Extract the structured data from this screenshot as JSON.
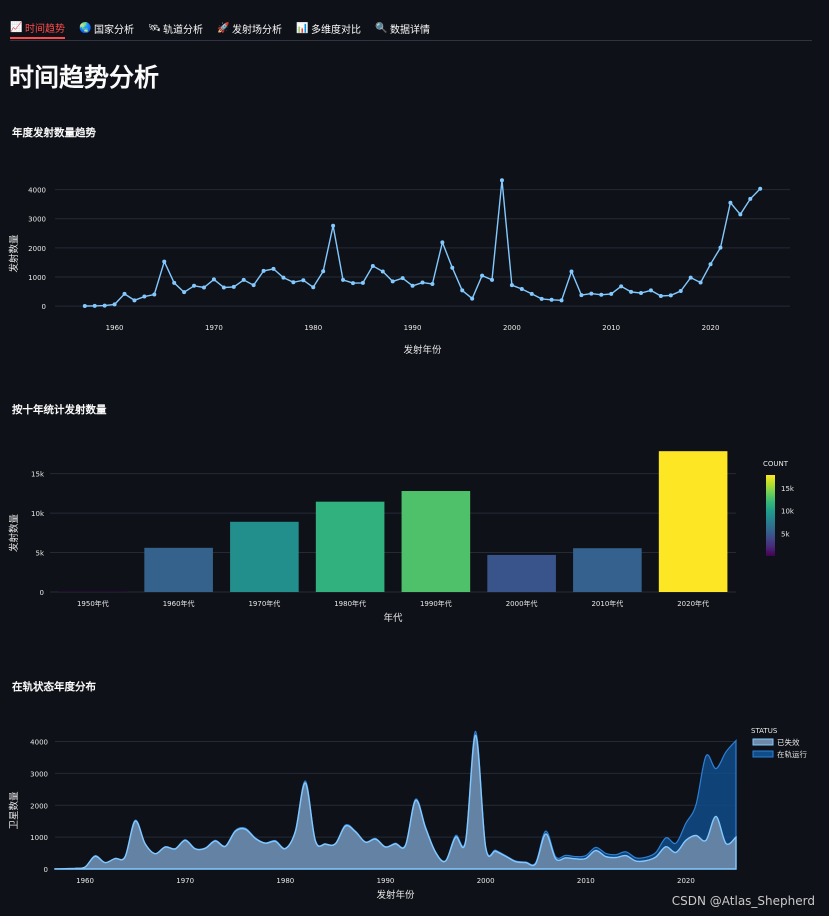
{
  "tabs": [
    {
      "label": "时间趋势",
      "icon": "📈",
      "active": true
    },
    {
      "label": "国家分析",
      "icon": "🌏",
      "active": false
    },
    {
      "label": "轨道分析",
      "icon": "🛰",
      "active": false
    },
    {
      "label": "发射场分析",
      "icon": "🚀",
      "active": false
    },
    {
      "label": "多维度对比",
      "icon": "📊",
      "active": false
    },
    {
      "label": "数据详情",
      "icon": "🔍",
      "active": false
    }
  ],
  "page_title": "时间趋势分析",
  "watermark": "CSDN @Atlas_Shepherd",
  "colors": {
    "accent": "#ff4b4b",
    "line": "#83c9ff",
    "area_dark": "#0f4c8a",
    "area_light": "#83c9ff"
  },
  "chart_data": [
    {
      "type": "line",
      "title": "年度发射数量趋势",
      "xlabel": "发射年份",
      "ylabel": "发射数量",
      "xlim": [
        1954,
        2028
      ],
      "ylim": [
        -200,
        4500
      ],
      "xticks": [
        1960,
        1970,
        1980,
        1990,
        2000,
        2010,
        2020
      ],
      "yticks": [
        0,
        1000,
        2000,
        3000,
        4000
      ],
      "x": [
        1957,
        1958,
        1959,
        1960,
        1961,
        1962,
        1963,
        1964,
        1965,
        1966,
        1967,
        1968,
        1969,
        1970,
        1971,
        1972,
        1973,
        1974,
        1975,
        1976,
        1977,
        1978,
        1979,
        1980,
        1981,
        1982,
        1983,
        1984,
        1985,
        1986,
        1987,
        1988,
        1989,
        1990,
        1991,
        1992,
        1993,
        1994,
        1995,
        1996,
        1997,
        1998,
        1999,
        2000,
        2001,
        2002,
        2003,
        2004,
        2005,
        2006,
        2007,
        2008,
        2009,
        2010,
        2011,
        2012,
        2013,
        2014,
        2015,
        2016,
        2017,
        2018,
        2019,
        2020,
        2021,
        2022,
        2023,
        2024,
        2025
      ],
      "y": [
        5,
        10,
        20,
        60,
        420,
        200,
        330,
        400,
        1530,
        800,
        480,
        700,
        640,
        920,
        640,
        660,
        900,
        720,
        1210,
        1280,
        980,
        820,
        890,
        650,
        1200,
        2760,
        900,
        790,
        800,
        1380,
        1190,
        850,
        960,
        700,
        810,
        760,
        2190,
        1320,
        540,
        260,
        1050,
        900,
        4320,
        720,
        590,
        420,
        250,
        220,
        200,
        1190,
        380,
        430,
        390,
        420,
        680,
        490,
        450,
        540,
        350,
        370,
        520,
        980,
        810,
        1440,
        2010,
        3550,
        3150,
        3680,
        4030
      ]
    },
    {
      "type": "bar",
      "title": "按十年统计发射数量",
      "xlabel": "年代",
      "ylabel": "发射数量",
      "ylim": [
        0,
        18000
      ],
      "yticks": [
        0,
        5000,
        10000,
        15000
      ],
      "ytick_labels": [
        "0",
        "5k",
        "10k",
        "15k"
      ],
      "categories": [
        "1950年代",
        "1960年代",
        "1970年代",
        "1980年代",
        "1990年代",
        "2000年代",
        "2010年代",
        "2020年代"
      ],
      "values": [
        60,
        5600,
        8900,
        11450,
        12800,
        4700,
        5550,
        17850
      ],
      "colorscale": "Viridis",
      "colorbar": {
        "title": "COUNT",
        "ticks": [
          5000,
          10000,
          15000
        ],
        "tick_labels": [
          "5k",
          "10k",
          "15k"
        ],
        "range": [
          60,
          17850
        ]
      }
    },
    {
      "type": "area",
      "title": "在轨状态年度分布",
      "xlabel": "发射年份",
      "ylabel": "卫星数量",
      "xlim": [
        1957,
        2025
      ],
      "ylim": [
        0,
        4300
      ],
      "xticks": [
        1960,
        1970,
        1980,
        1990,
        2000,
        2010,
        2020
      ],
      "yticks": [
        0,
        1000,
        2000,
        3000,
        4000
      ],
      "legend": {
        "title": "STATUS",
        "position": "top-right"
      },
      "x": [
        1957,
        1958,
        1959,
        1960,
        1961,
        1962,
        1963,
        1964,
        1965,
        1966,
        1967,
        1968,
        1969,
        1970,
        1971,
        1972,
        1973,
        1974,
        1975,
        1976,
        1977,
        1978,
        1979,
        1980,
        1981,
        1982,
        1983,
        1984,
        1985,
        1986,
        1987,
        1988,
        1989,
        1990,
        1991,
        1992,
        1993,
        1994,
        1995,
        1996,
        1997,
        1998,
        1999,
        2000,
        2001,
        2002,
        2003,
        2004,
        2005,
        2006,
        2007,
        2008,
        2009,
        2010,
        2011,
        2012,
        2013,
        2014,
        2015,
        2016,
        2017,
        2018,
        2019,
        2020,
        2021,
        2022,
        2023,
        2024,
        2025
      ],
      "series": [
        {
          "name": "已失效",
          "color": "#83c9ff",
          "values": [
            5,
            10,
            20,
            60,
            400,
            200,
            330,
            380,
            1500,
            790,
            480,
            690,
            630,
            900,
            630,
            650,
            880,
            710,
            1180,
            1250,
            960,
            810,
            870,
            640,
            1180,
            2700,
            880,
            780,
            790,
            1350,
            1170,
            840,
            940,
            690,
            790,
            740,
            2150,
            1290,
            520,
            250,
            1000,
            860,
            4200,
            690,
            560,
            400,
            230,
            200,
            170,
            1100,
            320,
            350,
            320,
            330,
            580,
            390,
            360,
            420,
            250,
            260,
            380,
            700,
            520,
            900,
            1050,
            900,
            1650,
            800,
            1000
          ]
        },
        {
          "name": "在轨运行",
          "color": "#0f4c8a",
          "values": [
            0,
            0,
            0,
            0,
            20,
            0,
            0,
            20,
            30,
            10,
            0,
            10,
            10,
            20,
            10,
            10,
            20,
            10,
            30,
            30,
            20,
            10,
            20,
            10,
            20,
            60,
            20,
            10,
            10,
            30,
            20,
            10,
            20,
            10,
            20,
            20,
            40,
            30,
            20,
            10,
            50,
            40,
            120,
            30,
            30,
            20,
            20,
            20,
            30,
            90,
            60,
            80,
            70,
            90,
            100,
            100,
            90,
            120,
            100,
            110,
            140,
            280,
            290,
            540,
            960,
            2650,
            1500,
            2880,
            3030
          ]
        }
      ]
    }
  ]
}
